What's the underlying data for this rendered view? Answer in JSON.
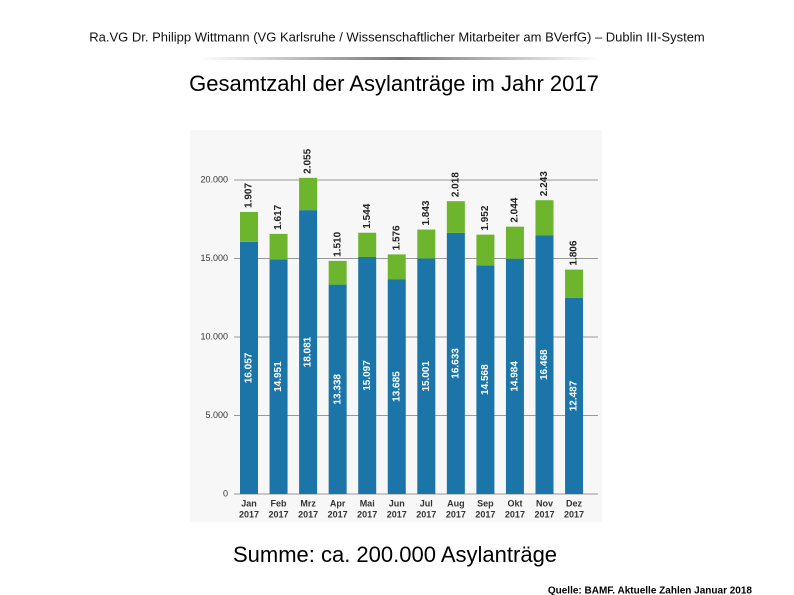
{
  "header": "Ra.VG Dr. Philipp Wittmann (VG Karlsruhe / Wissenschaftlicher Mitarbeiter am BVerfG) – Dublin III-System",
  "chart_data": {
    "type": "stacked_bar",
    "title": "Gesamtzahl der Asylanträge im Jahr 2017",
    "categories": [
      "Jan",
      "Feb",
      "Mrz",
      "Apr",
      "Mai",
      "Jun",
      "Jul",
      "Aug",
      "Sep",
      "Okt",
      "Nov",
      "Dez"
    ],
    "category_sublabels": [
      "2017",
      "2017",
      "2017",
      "2017",
      "2017",
      "2017",
      "2017",
      "2017",
      "2017",
      "2017",
      "2017",
      "2017"
    ],
    "series": [
      {
        "color": "#1b75a8",
        "values": [
          16057,
          14951,
          18081,
          13338,
          15097,
          13685,
          15001,
          16633,
          14568,
          14984,
          16468,
          12487
        ],
        "value_labels": [
          "16.057",
          "14.951",
          "18.081",
          "13.338",
          "15.097",
          "13.685",
          "15.001",
          "16.633",
          "14.568",
          "14.984",
          "16.468",
          "12.487"
        ]
      },
      {
        "color": "#6cb52d",
        "values": [
          1907,
          1617,
          2055,
          1510,
          1544,
          1576,
          1843,
          2018,
          1952,
          2044,
          2243,
          1806
        ],
        "value_labels": [
          "1.907",
          "1.617",
          "2.055",
          "1.510",
          "1.544",
          "1.576",
          "1.843",
          "2.018",
          "1.952",
          "2.044",
          "2.243",
          "1.806"
        ]
      }
    ],
    "ylim": [
      0,
      20000
    ],
    "yticks": [
      0,
      {
        "value": 5000,
        "label": "5.000"
      },
      {
        "value": 10000,
        "label": "10.000"
      },
      {
        "value": 15000,
        "label": "15.000"
      },
      {
        "value": 20000,
        "label": "20.000"
      }
    ],
    "grid": true
  },
  "summary": "Summe: ca. 200.000 Asylanträge",
  "source": "Quelle: BAMF. Aktuelle Zahlen Januar 2018"
}
